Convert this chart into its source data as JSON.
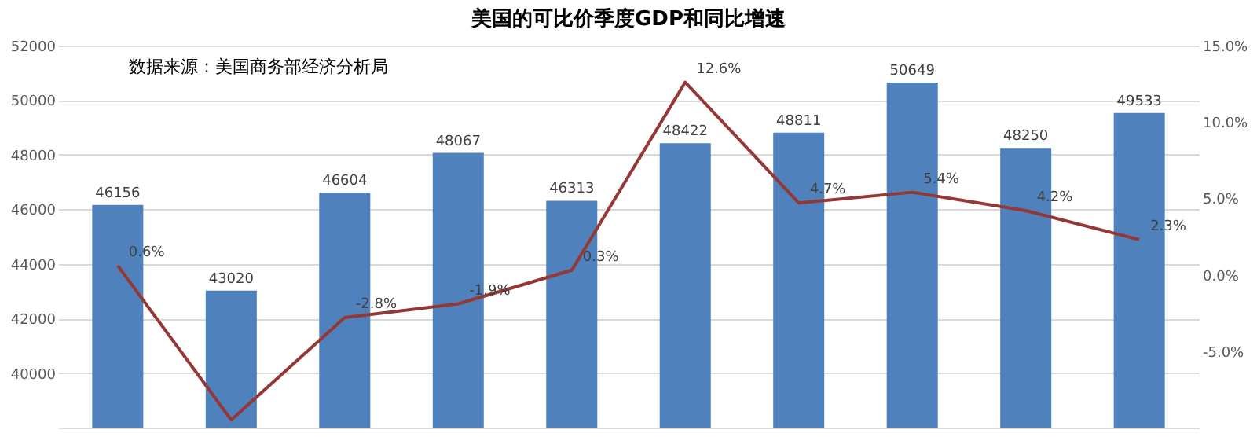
{
  "chart_data": {
    "type": "bar",
    "title": "美国的可比价季度GDP和同比增速",
    "annotations": [
      "数据来源：美国商务部经济分析局"
    ],
    "categories": [
      null,
      null,
      null,
      null,
      null,
      null,
      null,
      null,
      null,
      null
    ],
    "series": [
      {
        "type": "bar",
        "color": "#4f81bd",
        "values": [
          46156,
          43020,
          46604,
          48067,
          46313,
          48422,
          48811,
          50649,
          48250,
          49533
        ],
        "value_labels": [
          "46156",
          "43020",
          "46604",
          "48067",
          "46313",
          "48422",
          "48811",
          "50649",
          "48250",
          "49533"
        ]
      },
      {
        "type": "line",
        "axis": "y2",
        "color": "#953735",
        "values": [
          0.6,
          -9.5,
          -2.8,
          -1.9,
          0.3,
          12.6,
          4.7,
          5.4,
          4.2,
          2.3
        ],
        "value_labels": [
          "0.6%",
          null,
          "-2.8%",
          "-1.9%",
          "0.3%",
          "12.6%",
          "4.7%",
          "5.4%",
          "4.2%",
          "2.3%"
        ]
      }
    ],
    "ylim": [
      38000,
      52000
    ],
    "yticks": [
      40000,
      42000,
      44000,
      46000,
      48000,
      50000,
      52000
    ],
    "y2lim": [
      -10,
      15
    ],
    "y2ticks": [
      {
        "value": -5,
        "label": "-5.0%"
      },
      {
        "value": 0,
        "label": "0.0%"
      },
      {
        "value": 5,
        "label": "5.0%"
      },
      {
        "value": 10,
        "label": "10.0%"
      },
      {
        "value": 15,
        "label": "15.0%"
      }
    ],
    "grid": "y",
    "marker": "none",
    "line_style": "solid"
  }
}
